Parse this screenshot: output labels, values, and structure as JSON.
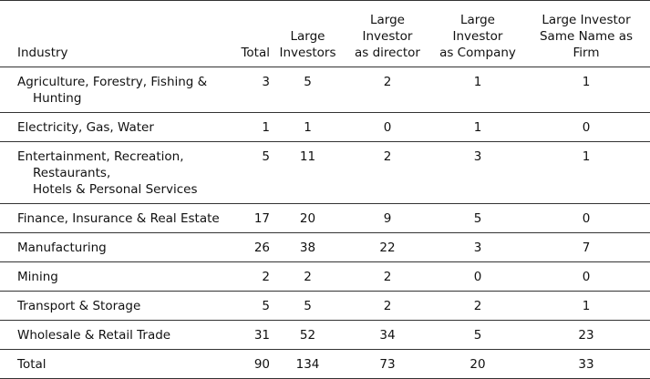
{
  "table": {
    "headers": {
      "industry": [
        "Industry"
      ],
      "total": [
        "Total"
      ],
      "large_investors": [
        "Large",
        "Investors"
      ],
      "as_director": [
        "Large",
        "Investor",
        "as director"
      ],
      "as_company": [
        "Large",
        "Investor",
        "as Company"
      ],
      "same_name": [
        "Large Investor",
        "Same Name as",
        "Firm"
      ]
    },
    "rows": [
      {
        "industry": [
          "Agriculture, Forestry, Fishing &",
          "Hunting"
        ],
        "total": "3",
        "large_investors": "5",
        "as_director": "2",
        "as_company": "1",
        "same_name": "1"
      },
      {
        "industry": [
          "Electricity, Gas, Water"
        ],
        "total": "1",
        "large_investors": "1",
        "as_director": "0",
        "as_company": "1",
        "same_name": "0"
      },
      {
        "industry": [
          "Entertainment, Recreation,",
          "Restaurants,",
          "Hotels & Personal Services"
        ],
        "total": "5",
        "large_investors": "11",
        "as_director": "2",
        "as_company": "3",
        "same_name": "1"
      },
      {
        "industry": [
          "Finance, Insurance & Real Estate"
        ],
        "total": "17",
        "large_investors": "20",
        "as_director": "9",
        "as_company": "5",
        "same_name": "0"
      },
      {
        "industry": [
          "Manufacturing"
        ],
        "total": "26",
        "large_investors": "38",
        "as_director": "22",
        "as_company": "3",
        "same_name": "7"
      },
      {
        "industry": [
          "Mining"
        ],
        "total": "2",
        "large_investors": "2",
        "as_director": "2",
        "as_company": "0",
        "same_name": "0"
      },
      {
        "industry": [
          "Transport & Storage"
        ],
        "total": "5",
        "large_investors": "5",
        "as_director": "2",
        "as_company": "2",
        "same_name": "1"
      },
      {
        "industry": [
          "Wholesale & Retail Trade"
        ],
        "total": "31",
        "large_investors": "52",
        "as_director": "34",
        "as_company": "5",
        "same_name": "23"
      },
      {
        "industry": [
          "Total"
        ],
        "total": "90",
        "large_investors": "134",
        "as_director": "73",
        "as_company": "20",
        "same_name": "33"
      }
    ]
  }
}
